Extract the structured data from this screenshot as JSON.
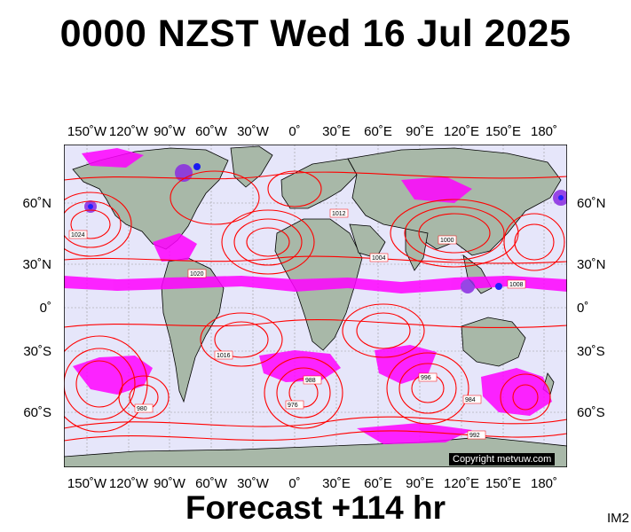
{
  "title": "0000 NZST Wed 16 Jul 2025",
  "footer": "Forecast +114 hr",
  "image_code": "IM2",
  "copyright": "Copyright metvuw.com",
  "lon_labels": [
    "150˚W",
    "120˚W",
    "90˚W",
    "60˚W",
    "30˚W",
    "0˚",
    "30˚E",
    "60˚E",
    "90˚E",
    "120˚E",
    "150˚E",
    "180˚"
  ],
  "lat_labels": [
    "60˚N",
    "30˚N",
    "0˚",
    "30˚S",
    "60˚S"
  ],
  "isobar_labels": [
    "1024",
    "1020",
    "1016",
    "1012",
    "1008",
    "1004",
    "1000",
    "996",
    "992",
    "988",
    "984",
    "980",
    "976"
  ],
  "colors": {
    "ocean": "#e6e6fa",
    "land": "#a8b8a8",
    "isobar": "#ff0000",
    "rain_light": "#ff00ff",
    "rain_medium": "#8a2be2",
    "rain_heavy": "#0000ff"
  }
}
